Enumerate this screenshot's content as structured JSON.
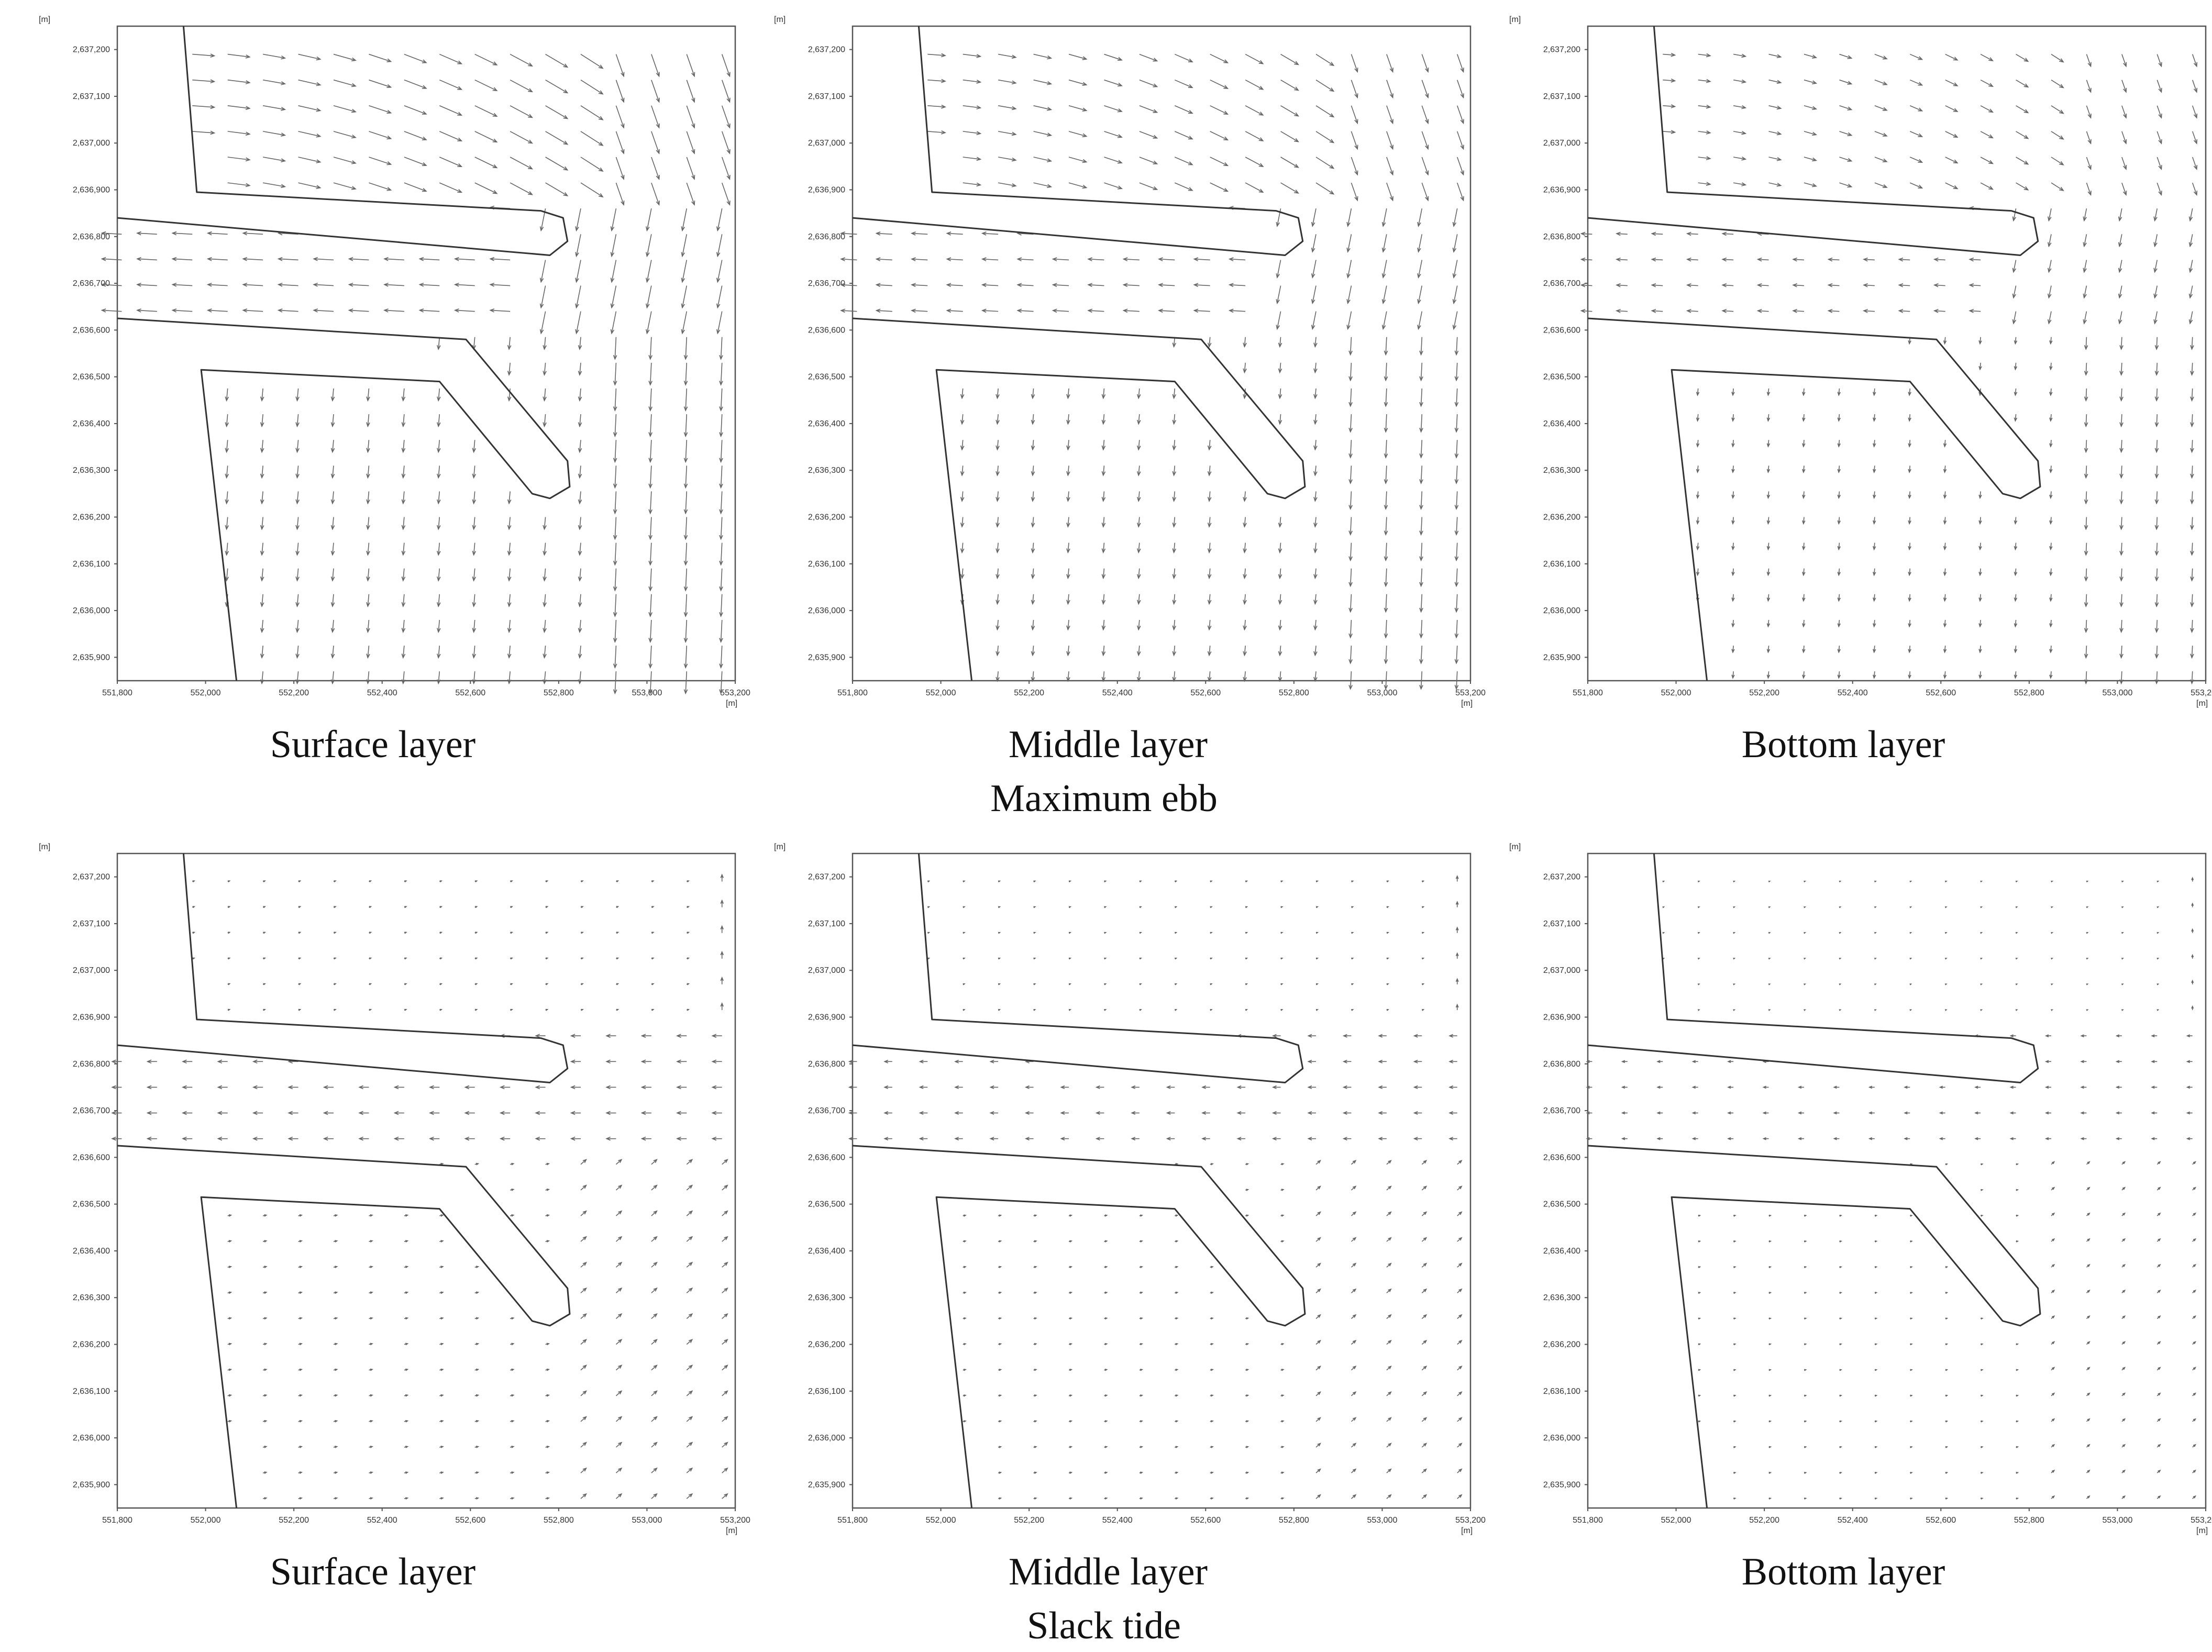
{
  "figure": {
    "rows": [
      {
        "group_caption": "Maximum ebb",
        "tide_state": "ebb",
        "panels": [
          {
            "caption": "Surface layer",
            "layer": "surface"
          },
          {
            "caption": "Middle layer",
            "layer": "middle"
          },
          {
            "caption": "Bottom layer",
            "layer": "bottom"
          }
        ]
      },
      {
        "group_caption": "Slack tide",
        "tide_state": "slack",
        "panels": [
          {
            "caption": "Surface layer",
            "layer": "surface"
          },
          {
            "caption": "Middle layer",
            "layer": "middle"
          },
          {
            "caption": "Bottom layer",
            "layer": "bottom"
          }
        ]
      }
    ]
  },
  "chart_data": {
    "type": "vector-field",
    "x_unit": "[m]",
    "y_unit": "[m]",
    "xlim": [
      551800,
      553200
    ],
    "ylim": [
      2635850,
      2637250
    ],
    "x_ticks": [
      551800,
      552000,
      552200,
      552400,
      552600,
      552800,
      553000,
      553200
    ],
    "x_tick_labels": [
      "551,800",
      "552,000",
      "552,200",
      "552,400",
      "552,600",
      "552,800",
      "553,000",
      "553,200"
    ],
    "y_ticks": [
      2635900,
      2636000,
      2636100,
      2636200,
      2636300,
      2636400,
      2636500,
      2636600,
      2636700,
      2636800,
      2636900,
      2637000,
      2637100,
      2637200
    ],
    "y_tick_labels": [
      "2,635,900",
      "2,636,000",
      "2,636,100",
      "2,636,200",
      "2,636,300",
      "2,636,400",
      "2,636,500",
      "2,636,600",
      "2,636,700",
      "2,636,800",
      "2,636,900",
      "2,637,000",
      "2,637,100",
      "2,637,200"
    ],
    "coastlines": [
      {
        "name": "north-shore",
        "points": [
          [
            551800,
            2636840
          ],
          [
            552780,
            2636760
          ],
          [
            552820,
            2636790
          ],
          [
            552810,
            2636840
          ],
          [
            552760,
            2636855
          ],
          [
            551980,
            2636895
          ],
          [
            551950,
            2637250
          ]
        ]
      },
      {
        "name": "south-shore",
        "points": [
          [
            551800,
            2636625
          ],
          [
            552590,
            2636580
          ],
          [
            552820,
            2636320
          ],
          [
            552825,
            2636265
          ],
          [
            552780,
            2636240
          ],
          [
            552740,
            2636250
          ],
          [
            552530,
            2636490
          ],
          [
            551990,
            2636515
          ],
          [
            552070,
            2635850
          ]
        ]
      }
    ],
    "vector_grid": {
      "dx": 80,
      "dy": 55,
      "x_start": 551810,
      "y_start": 2635870
    }
  }
}
